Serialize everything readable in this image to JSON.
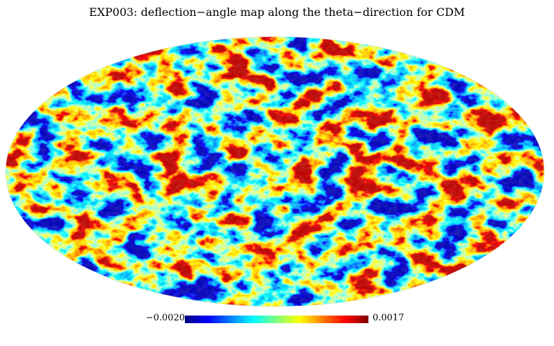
{
  "title": "EXP003: deflection−angle map along the theta−direction for CDM",
  "projection": "mollweide",
  "colormap": "jet",
  "colorbar": {
    "min_label": "−0.0020",
    "max_label": "0.0017",
    "min": -0.002,
    "max": 0.0017
  },
  "colors": {
    "jet": [
      "#00007f",
      "#0000ff",
      "#007fff",
      "#00ffff",
      "#7fff7f",
      "#ffff00",
      "#ff7f00",
      "#ff0000",
      "#7f0000"
    ],
    "background": "#ffffff"
  }
}
